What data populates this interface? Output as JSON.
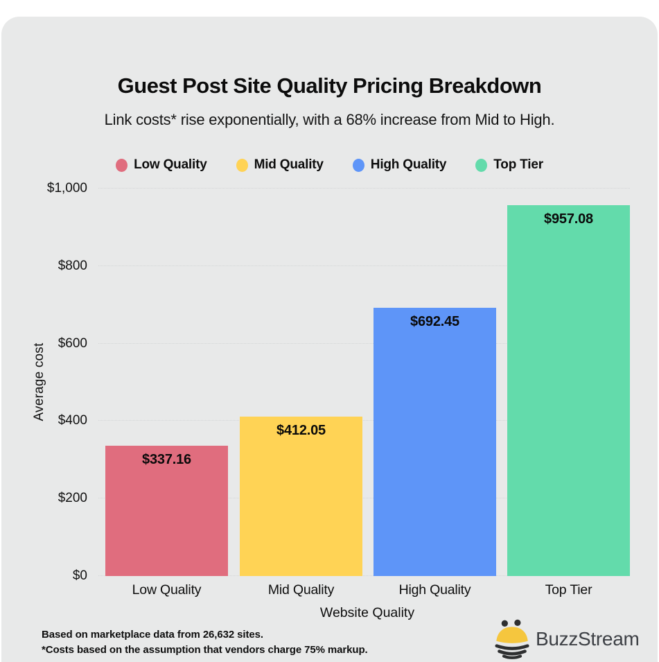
{
  "page": {
    "title": "Guest Post Site Quality Pricing Breakdown",
    "subtitle": "Link costs* rise exponentially, with a 68% increase from Mid to High.",
    "footnotes": [
      "Based on marketplace data from 26,632 sites.",
      "*Costs based on the assumption that vendors charge 75% markup."
    ],
    "brand": {
      "name": "BuzzStream",
      "icon": "bee-icon",
      "text_color": "#3d4045",
      "bee_yellow": "#f5c63e",
      "bee_dark": "#2e2f30"
    },
    "colors": {
      "card_background": "#e8e9e9",
      "page_background": "#ffffff",
      "gridline": "#d3d5d6",
      "text": "#0d0d0d"
    }
  },
  "chart_data": {
    "type": "bar",
    "title": "Guest Post Site Quality Pricing Breakdown",
    "subtitle": "Link costs* rise exponentially, with a 68% increase from Mid to High.",
    "categories": [
      "Low Quality",
      "Mid Quality",
      "High Quality",
      "Top Tier"
    ],
    "values": [
      337.16,
      412.05,
      692.45,
      957.08
    ],
    "value_labels": [
      "$337.16",
      "$412.05",
      "$692.45",
      "$957.08"
    ],
    "bar_colors": [
      "#e06d7e",
      "#ffd355",
      "#5e95f8",
      "#63dbab"
    ],
    "xlabel": "Website Quality",
    "ylabel": "Average cost",
    "ylim": [
      0,
      1000
    ],
    "yticks": [
      0,
      200,
      400,
      600,
      800,
      1000
    ],
    "ytick_labels": [
      "$0",
      "$200",
      "$400",
      "$600",
      "$800",
      "$1,000"
    ],
    "grid": "horizontal dotted gridlines at each $200 step",
    "legend": {
      "position": "top-center",
      "entries": [
        {
          "label": "Low Quality",
          "color": "#e06d7e"
        },
        {
          "label": "Mid Quality",
          "color": "#ffd355"
        },
        {
          "label": "High Quality",
          "color": "#5e95f8"
        },
        {
          "label": "Top Tier",
          "color": "#63dbab"
        }
      ]
    }
  }
}
